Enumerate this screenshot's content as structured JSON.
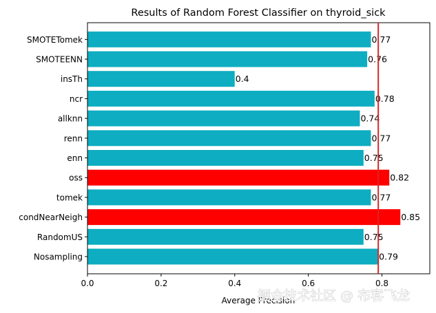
{
  "chart_data": {
    "type": "bar",
    "orientation": "horizontal",
    "title": "Results of Random Forest Classifier on thyroid_sick",
    "xlabel": "Average Precision",
    "ylabel": "",
    "xlim": [
      0,
      0.93
    ],
    "xticks": [
      "0.0",
      "0.2",
      "0.4",
      "0.6",
      "0.8"
    ],
    "categories": [
      "Nosampling",
      "RandomUS",
      "condNearNeigh",
      "tomek",
      "oss",
      "enn",
      "renn",
      "allknn",
      "ncr",
      "insTh",
      "SMOTEENN",
      "SMOTETomek"
    ],
    "values": [
      0.79,
      0.75,
      0.85,
      0.77,
      0.82,
      0.75,
      0.77,
      0.74,
      0.78,
      0.4,
      0.76,
      0.77
    ],
    "value_labels": [
      "0.79",
      "0.75",
      "0.85",
      "0.77",
      "0.82",
      "0.75",
      "0.77",
      "0.74",
      "0.78",
      "0.4",
      "0.76",
      "0.77"
    ],
    "highlighted": [
      "condNearNeigh",
      "oss"
    ],
    "reference_line_x": 0.79,
    "grid": false,
    "colors": {
      "bar": "#0eadc1",
      "highlight": "#ff0000",
      "reference_line": "#d62728"
    }
  },
  "watermark": "掘金技术社区 @ 布客飞龙"
}
